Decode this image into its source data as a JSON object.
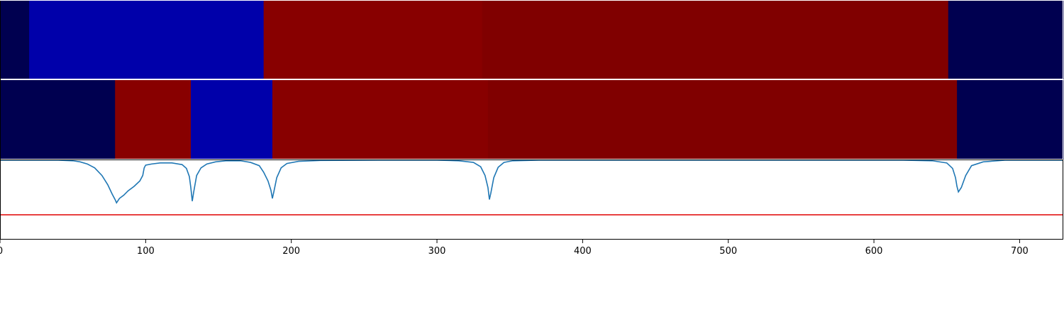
{
  "chart_data": [
    {
      "type": "heatmap",
      "panel": "top-band",
      "xlim": [
        0,
        730
      ],
      "segments": [
        {
          "start": 0,
          "end": 20,
          "color": "#000050"
        },
        {
          "start": 20,
          "end": 181,
          "color": "#0000aa"
        },
        {
          "start": 181,
          "end": 331,
          "color": "#880000"
        },
        {
          "start": 331,
          "end": 651,
          "color": "#800000"
        },
        {
          "start": 651,
          "end": 730,
          "color": "#000050"
        }
      ]
    },
    {
      "type": "heatmap",
      "panel": "middle-band",
      "xlim": [
        0,
        730
      ],
      "segments": [
        {
          "start": 0,
          "end": 79,
          "color": "#000050"
        },
        {
          "start": 79,
          "end": 131,
          "color": "#880000"
        },
        {
          "start": 131,
          "end": 187,
          "color": "#0000aa"
        },
        {
          "start": 187,
          "end": 335,
          "color": "#880000"
        },
        {
          "start": 335,
          "end": 657,
          "color": "#800000"
        },
        {
          "start": 657,
          "end": 730,
          "color": "#000050"
        }
      ]
    },
    {
      "type": "line",
      "panel": "signal",
      "xlim": [
        0,
        730
      ],
      "ylim": [
        0,
        1
      ],
      "ticks": [
        0,
        100,
        200,
        300,
        400,
        500,
        600,
        700
      ],
      "grid": false,
      "series": [
        {
          "color": "#1f77b4",
          "x": [
            0,
            40,
            50,
            55,
            60,
            65,
            70,
            74,
            77,
            79,
            80,
            82,
            85,
            88,
            92,
            96,
            98,
            99,
            100,
            104,
            110,
            118,
            125,
            128,
            130,
            131,
            132,
            133,
            135,
            138,
            142,
            148,
            155,
            165,
            172,
            178,
            181,
            184,
            186,
            187,
            188,
            190,
            193,
            197,
            205,
            220,
            260,
            300,
            315,
            325,
            330,
            333,
            335,
            336,
            337,
            339,
            342,
            346,
            352,
            370,
            450,
            550,
            620,
            640,
            650,
            654,
            656,
            657,
            658,
            660,
            663,
            667,
            675,
            690,
            730
          ],
          "y": [
            1.0,
            1.0,
            0.99,
            0.97,
            0.93,
            0.86,
            0.72,
            0.55,
            0.38,
            0.28,
            0.22,
            0.3,
            0.36,
            0.44,
            0.52,
            0.62,
            0.72,
            0.86,
            0.91,
            0.93,
            0.95,
            0.95,
            0.92,
            0.85,
            0.7,
            0.5,
            0.25,
            0.42,
            0.72,
            0.86,
            0.93,
            0.97,
            0.99,
            0.99,
            0.96,
            0.9,
            0.78,
            0.62,
            0.45,
            0.3,
            0.42,
            0.68,
            0.86,
            0.94,
            0.98,
            0.995,
            1.0,
            1.0,
            0.99,
            0.96,
            0.88,
            0.72,
            0.5,
            0.28,
            0.4,
            0.68,
            0.87,
            0.96,
            0.99,
            1.0,
            1.0,
            1.0,
            1.0,
            0.99,
            0.95,
            0.85,
            0.68,
            0.52,
            0.42,
            0.5,
            0.72,
            0.9,
            0.97,
            1.0,
            1.0
          ]
        },
        {
          "color": "#e00000",
          "x": [
            0,
            730
          ],
          "y": [
            0.0,
            0.0
          ]
        }
      ]
    }
  ]
}
